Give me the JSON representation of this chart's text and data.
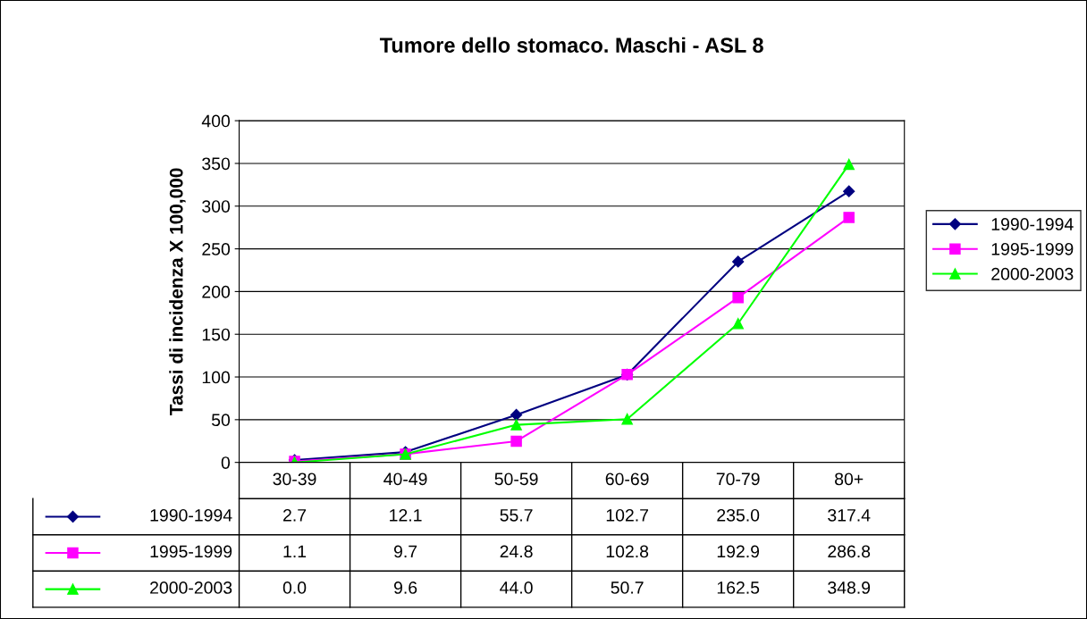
{
  "chart_data": {
    "type": "line",
    "title": "Tumore dello stomaco. Maschi - ASL 8",
    "ylabel": "Tassi di incidenza X 100,000",
    "categories": [
      "30-39",
      "40-49",
      "50-59",
      "60-69",
      "70-79",
      "80+"
    ],
    "series": [
      {
        "name": "1990-1994",
        "color": "#000080",
        "marker": "diamond",
        "values": [
          2.7,
          12.1,
          55.7,
          102.7,
          235.0,
          317.4
        ],
        "value_labels": [
          "2.7",
          "12.1",
          "55.7",
          "102.7",
          "235.0",
          "317.4"
        ]
      },
      {
        "name": "1995-1999",
        "color": "#ff00ff",
        "marker": "square",
        "values": [
          1.1,
          9.7,
          24.8,
          102.8,
          192.9,
          286.8
        ],
        "value_labels": [
          "1.1",
          "9.7",
          "24.8",
          "102.8",
          "192.9",
          "286.8"
        ]
      },
      {
        "name": "2000-2003",
        "color": "#00ff00",
        "marker": "triangle",
        "values": [
          0.0,
          9.6,
          44.0,
          50.7,
          162.5,
          348.9
        ],
        "value_labels": [
          "0.0",
          "9.6",
          "44.0",
          "50.7",
          "162.5",
          "348.9"
        ]
      }
    ],
    "ylim": [
      0,
      400
    ],
    "yticks": [
      0,
      50,
      100,
      150,
      200,
      250,
      300,
      350,
      400
    ],
    "grid": "y",
    "legend": "right"
  }
}
